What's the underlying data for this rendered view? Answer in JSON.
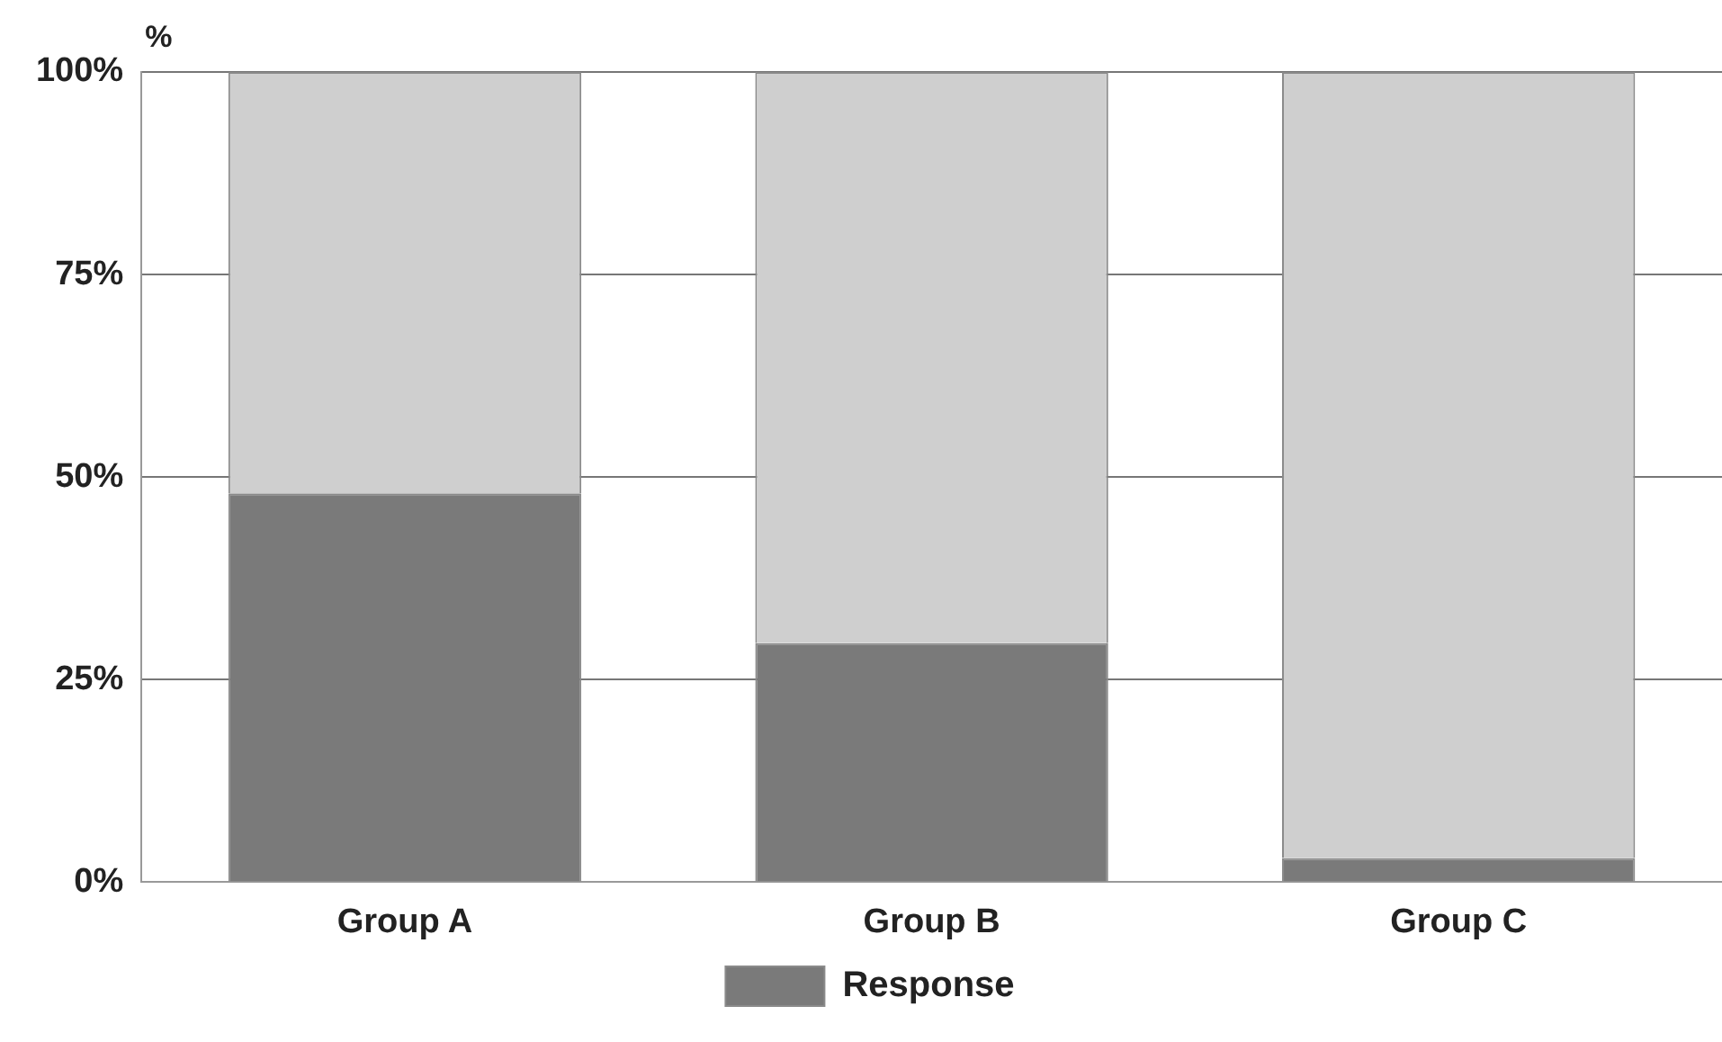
{
  "chart_data": {
    "type": "bar",
    "ylabel": "%",
    "categories": [
      "Group A",
      "Group B",
      "Group C"
    ],
    "stacked": true,
    "series": [
      {
        "name": "Response",
        "color": "#7a7a7a",
        "values": [
          48,
          29.5,
          3
        ]
      },
      {
        "color": "#cfcfcf",
        "values": [
          52,
          70.5,
          97
        ]
      }
    ],
    "ylim": [
      0,
      100
    ],
    "yticks": [
      {
        "value": 0,
        "label": "0%"
      },
      {
        "value": 25,
        "label": "25%"
      },
      {
        "value": 50,
        "label": "50%"
      },
      {
        "value": 75,
        "label": "75%"
      },
      {
        "value": 100,
        "label": "100%"
      }
    ],
    "grid": "y",
    "legend": "bottom"
  }
}
